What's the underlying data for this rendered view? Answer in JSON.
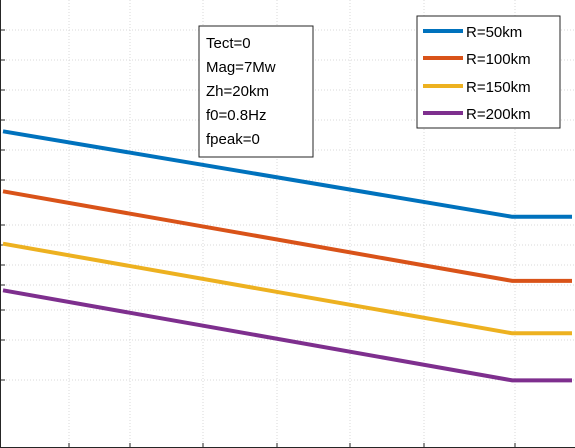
{
  "chart_data": {
    "type": "line",
    "title": "",
    "xlabel": "",
    "ylabel": "",
    "grid": true,
    "legend": {
      "placement": "top-right",
      "entries": [
        "R=50km",
        "R=100km",
        "R=150km",
        "R=200km"
      ]
    },
    "annotation": [
      "Tect=0",
      "Mag=7Mw",
      "Zh=20km",
      "f0=0.8Hz",
      "fpeak=0"
    ],
    "series": [
      {
        "name": "R=50km",
        "color": "#0072BD",
        "points": [
          [
            0,
            0.707
          ],
          [
            0.895,
            0.516
          ],
          [
            1,
            0.516
          ]
        ]
      },
      {
        "name": "R=100km",
        "color": "#D95319",
        "points": [
          [
            0,
            0.573
          ],
          [
            0.895,
            0.373
          ],
          [
            1,
            0.373
          ]
        ]
      },
      {
        "name": "R=150km",
        "color": "#EDB120",
        "points": [
          [
            0,
            0.456
          ],
          [
            0.895,
            0.256
          ],
          [
            1,
            0.256
          ]
        ]
      },
      {
        "name": "R=200km",
        "color": "#7E2F8E",
        "points": [
          [
            0,
            0.352
          ],
          [
            0.895,
            0.151
          ],
          [
            1,
            0.151
          ]
        ]
      }
    ]
  }
}
